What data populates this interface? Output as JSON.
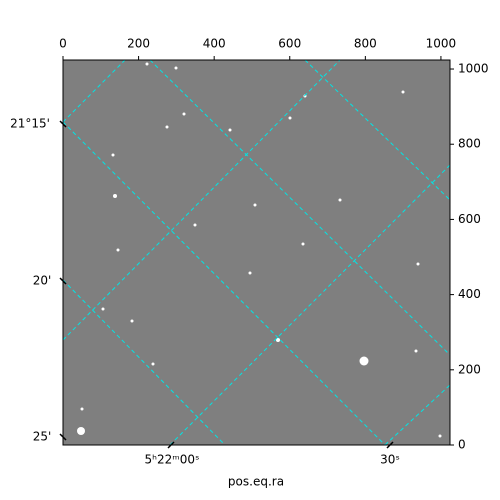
{
  "chart_data": {
    "type": "image",
    "xlim": [
      0,
      1024
    ],
    "ylim": [
      0,
      1024
    ],
    "xticks": [
      0,
      200,
      400,
      600,
      800,
      1000
    ],
    "yticks": [
      0,
      200,
      400,
      600,
      800,
      1000
    ],
    "xlabel": "pos.eq.ra",
    "dec_tick_labels": [
      "21°15'",
      "20'",
      "25'"
    ],
    "ra_tick_labels": [
      "5ʰ22ᵐ00ˢ",
      "30ˢ"
    ],
    "grid_color": "#00e5e5"
  }
}
